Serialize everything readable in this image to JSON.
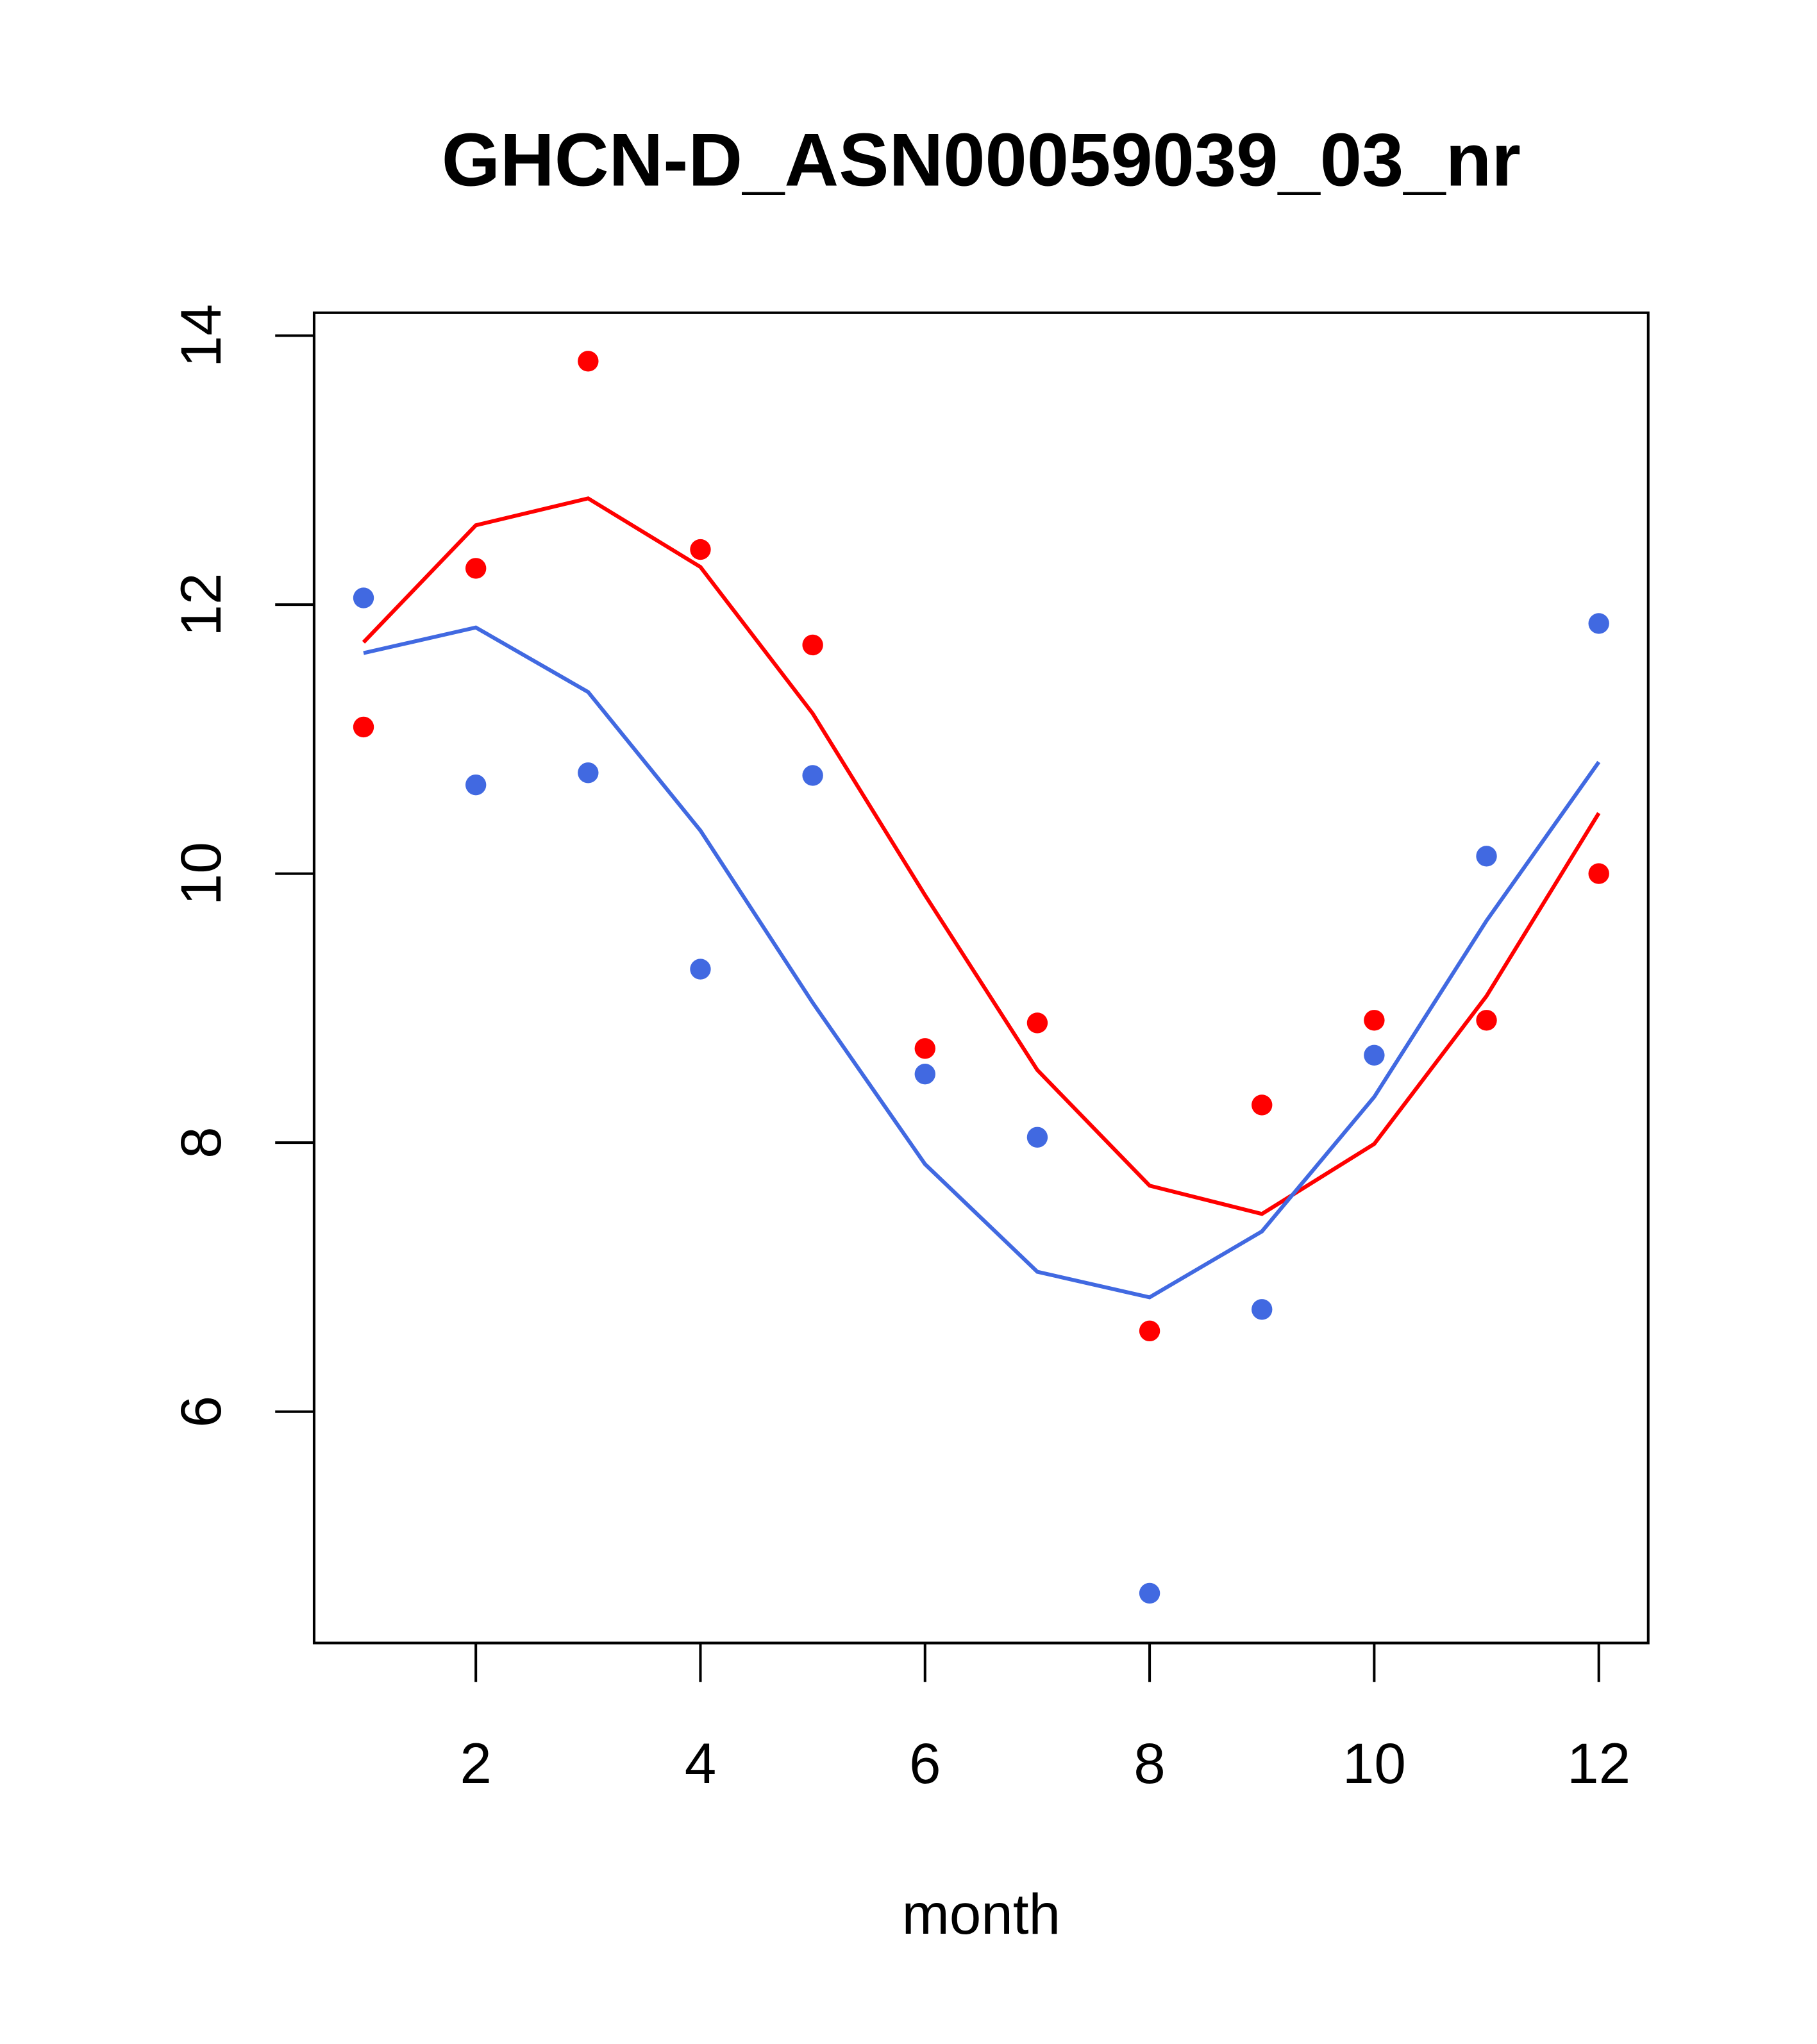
{
  "chart_data": {
    "type": "line",
    "title": "GHCN-D_ASN00059039_03_nr",
    "xlabel": "month",
    "ylabel": "",
    "xlim": [
      0.56,
      12.44
    ],
    "ylim": [
      4.28,
      14.17
    ],
    "xticks": [
      2,
      4,
      6,
      8,
      10,
      12
    ],
    "yticks": [
      6,
      8,
      10,
      12,
      14
    ],
    "grid": false,
    "x": [
      1,
      2,
      3,
      4,
      5,
      6,
      7,
      8,
      9,
      10,
      11,
      12
    ],
    "series": [
      {
        "name": "red points",
        "kind": "scatter",
        "color": "#ff0000",
        "values": [
          11.09,
          12.27,
          13.81,
          12.41,
          11.7,
          8.7,
          8.89,
          6.6,
          8.28,
          8.91,
          8.91,
          10.0
        ]
      },
      {
        "name": "blue points",
        "kind": "scatter",
        "color": "#4169e1",
        "values": [
          12.05,
          10.66,
          10.75,
          9.29,
          10.73,
          8.51,
          8.04,
          4.65,
          6.76,
          8.65,
          10.13,
          11.86
        ]
      },
      {
        "name": "red line",
        "kind": "line",
        "color": "#ff0000",
        "values": [
          11.72,
          12.59,
          12.79,
          12.28,
          11.19,
          9.84,
          8.54,
          7.68,
          7.47,
          7.99,
          9.09,
          10.45
        ]
      },
      {
        "name": "blue line",
        "kind": "line",
        "color": "#4169e1",
        "values": [
          11.64,
          11.83,
          11.35,
          10.32,
          9.04,
          7.84,
          7.04,
          6.85,
          7.34,
          8.34,
          9.65,
          10.83
        ]
      }
    ]
  }
}
